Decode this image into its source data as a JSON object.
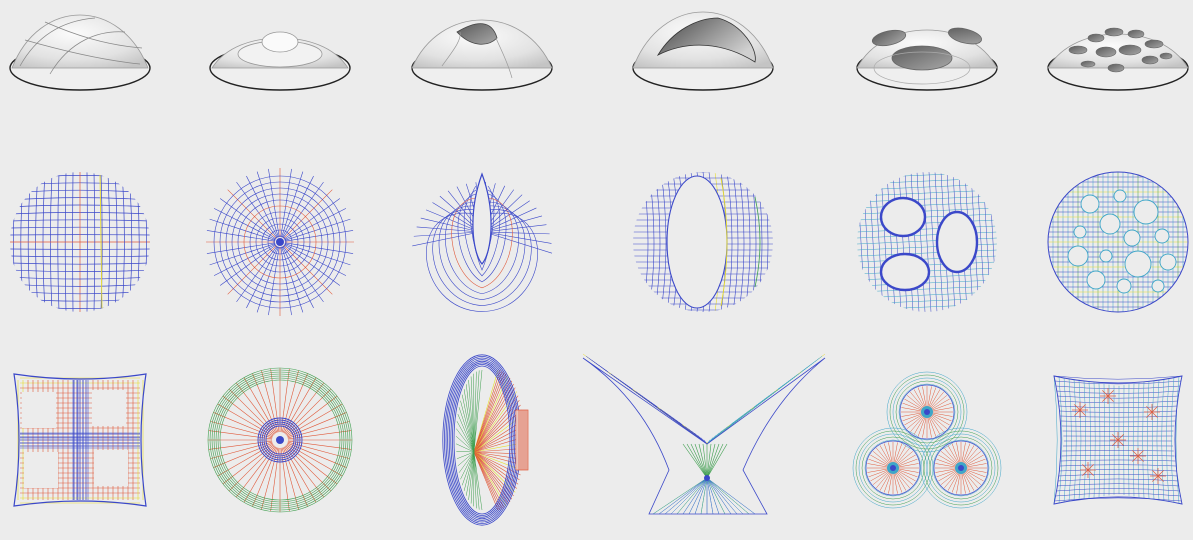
{
  "figure": {
    "background": "#ececec",
    "rows": [
      {
        "name": "shell-renderings",
        "items": [
          {
            "name": "quad-vault-shell",
            "kind": "shell",
            "variant": "vaults"
          },
          {
            "name": "stepped-dome-shell",
            "kind": "shell",
            "variant": "stepped"
          },
          {
            "name": "slit-dome-shell",
            "kind": "shell",
            "variant": "slit"
          },
          {
            "name": "open-crescent-shell",
            "kind": "shell",
            "variant": "open"
          },
          {
            "name": "three-opening-shell",
            "kind": "shell",
            "variant": "three-holes"
          },
          {
            "name": "perforated-shell",
            "kind": "shell",
            "variant": "perforated"
          }
        ]
      },
      {
        "name": "plan-meshes",
        "items": [
          {
            "name": "orthogonal-grid-plan",
            "kind": "mesh",
            "variant": "grid"
          },
          {
            "name": "radial-plan",
            "kind": "mesh",
            "variant": "radial"
          },
          {
            "name": "slit-plan",
            "kind": "mesh",
            "variant": "slit"
          },
          {
            "name": "crescent-plan",
            "kind": "mesh",
            "variant": "crescent"
          },
          {
            "name": "three-hole-plan",
            "kind": "mesh",
            "variant": "three-holes"
          },
          {
            "name": "perforated-plan",
            "kind": "mesh",
            "variant": "perforated"
          }
        ]
      },
      {
        "name": "force-networks",
        "items": [
          {
            "name": "quad-cable-net",
            "kind": "network",
            "variant": "quad"
          },
          {
            "name": "radial-cable-net",
            "kind": "network",
            "variant": "radial"
          },
          {
            "name": "oval-fan-net",
            "kind": "network",
            "variant": "oval"
          },
          {
            "name": "butterfly-net",
            "kind": "network",
            "variant": "butterfly"
          },
          {
            "name": "trefoil-net",
            "kind": "network",
            "variant": "trefoil"
          },
          {
            "name": "cushion-net",
            "kind": "network",
            "variant": "cushion"
          }
        ]
      }
    ],
    "colors": {
      "blue": "#3b48c9",
      "red": "#e0593a",
      "yellow": "#e7dc2a",
      "green": "#3f9f4f",
      "cyan": "#3fa6c8",
      "shell_light": "#f7f7f7",
      "shell_dark": "#8a8a8a",
      "outline": "#333333"
    }
  }
}
